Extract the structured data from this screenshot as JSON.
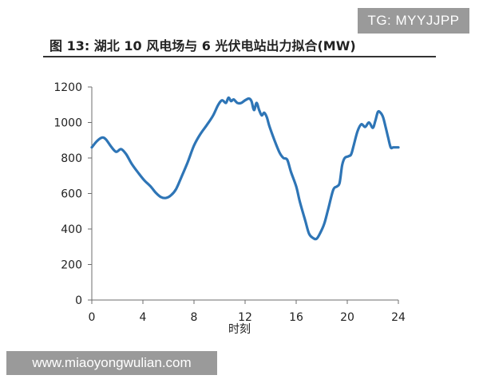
{
  "badge": "TG: MYYJJPP",
  "watermark": "www.miaoyongwulian.com",
  "colors": {
    "line": "#2e75b6",
    "axis": "#6e6e6e",
    "text": "#222222",
    "badge_bg": "#9a9a9a"
  },
  "chart_data": {
    "type": "line",
    "title": "图 13: 湖北 10 风电场与 6 光伏电站出力拟合(MW)",
    "xlabel": "时刻",
    "ylabel": "",
    "xlim": [
      0,
      24
    ],
    "ylim": [
      0,
      1200
    ],
    "x_ticks": [
      0,
      4,
      8,
      12,
      16,
      20,
      24
    ],
    "y_ticks": [
      0,
      200,
      400,
      600,
      800,
      1000,
      1200
    ],
    "grid": false,
    "legend": "none",
    "series": [
      {
        "x": [
          0,
          0.4,
          0.8,
          1.1,
          1.5,
          1.9,
          2.3,
          2.7,
          3.1,
          3.6,
          4.1,
          4.6,
          5.0,
          5.4,
          5.8,
          6.2,
          6.6,
          7.0,
          7.5,
          8.0,
          8.5,
          9.0,
          9.5,
          9.9,
          10.2,
          10.5,
          10.7,
          10.9,
          11.1,
          11.4,
          11.7,
          12.0,
          12.3,
          12.5,
          12.7,
          12.9,
          13.1,
          13.3,
          13.5,
          13.7,
          13.9,
          14.3,
          14.7,
          15.0,
          15.3,
          15.6,
          16.0,
          16.3,
          16.7,
          17.0,
          17.3,
          17.6,
          17.9,
          18.2,
          18.5,
          18.9,
          19.2,
          19.4,
          19.6,
          19.8,
          20.1,
          20.3,
          20.5,
          20.8,
          21.1,
          21.4,
          21.7,
          22.0,
          22.2,
          22.4,
          22.6,
          22.8,
          23.0,
          23.2,
          23.4,
          23.6,
          23.8,
          24.0
        ],
        "values": [
          860,
          895,
          915,
          905,
          865,
          835,
          850,
          820,
          770,
          720,
          675,
          640,
          605,
          580,
          575,
          590,
          625,
          690,
          775,
          870,
          935,
          985,
          1040,
          1100,
          1125,
          1110,
          1140,
          1120,
          1130,
          1110,
          1110,
          1125,
          1135,
          1120,
          1070,
          1110,
          1070,
          1040,
          1055,
          1030,
          980,
          900,
          830,
          800,
          790,
          720,
          640,
          550,
          450,
          375,
          350,
          345,
          380,
          430,
          510,
          620,
          640,
          660,
          760,
          800,
          810,
          820,
          870,
          950,
          990,
          975,
          1000,
          970,
          1010,
          1060,
          1055,
          1030,
          975,
          915,
          860,
          860,
          860,
          860
        ]
      }
    ]
  }
}
